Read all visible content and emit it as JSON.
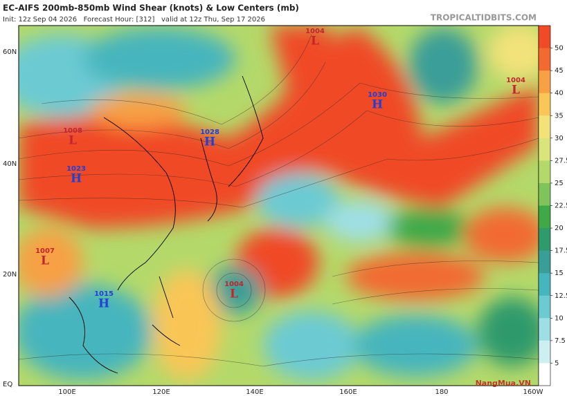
{
  "header": {
    "title": "EC-AIFS 200mb-850mb Wind Shear (knots) & Low Centers (mb)",
    "subtitle": "Init: 12z Sep 04 2026   Forecast Hour: [312]   valid at 12z Thu, Sep 17 2026",
    "site": "TROPICALTIDBITS.COM"
  },
  "map": {
    "lat_labels": [
      "60N",
      "40N",
      "20N",
      "EQ"
    ],
    "lon_labels": [
      "100E",
      "120E",
      "140E",
      "160E",
      "180",
      "160W"
    ],
    "centers": [
      {
        "type": "L",
        "pressure": "1004"
      },
      {
        "type": "H",
        "pressure": "1030"
      },
      {
        "type": "L",
        "pressure": "1004"
      },
      {
        "type": "L",
        "pressure": "1008"
      },
      {
        "type": "H",
        "pressure": "1028"
      },
      {
        "type": "H",
        "pressure": "1023"
      },
      {
        "type": "L",
        "pressure": "1007"
      },
      {
        "type": "H",
        "pressure": "1015"
      },
      {
        "type": "L",
        "pressure": "1004"
      }
    ]
  },
  "colorbar": {
    "ticks": [
      50,
      45,
      40,
      35,
      30,
      27.5,
      25,
      22.5,
      20,
      17.5,
      15,
      12.5,
      10,
      7.5,
      5
    ],
    "colors": [
      "#f04a26",
      "#f26a30",
      "#f7a044",
      "#f9c657",
      "#f3e27a",
      "#d9e57a",
      "#b4d96a",
      "#7fc35c",
      "#3fa948",
      "#2f9a6c",
      "#3a9e98",
      "#47b5bd",
      "#6ccad3",
      "#9edfe6",
      "#cdeff2",
      "#ffffff"
    ]
  },
  "watermark": "NangMua.VN"
}
